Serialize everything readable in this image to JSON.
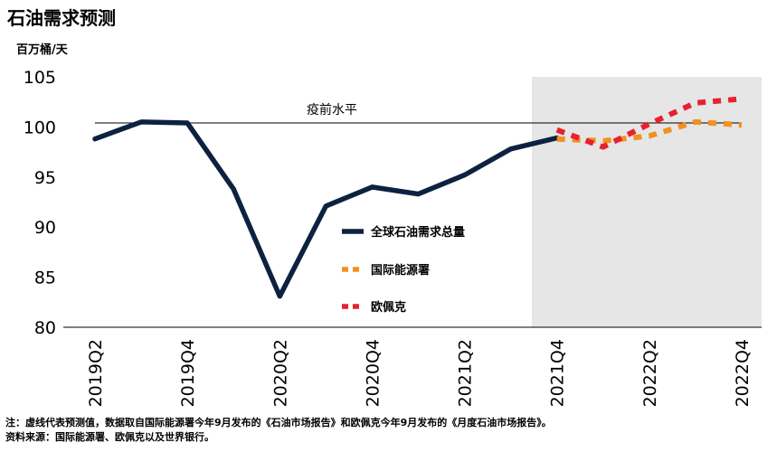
{
  "title": "石油需求预测",
  "unit_label": "百万桶/天",
  "footnotes": {
    "note": "注：虚线代表预测值，数据取自国际能源署今年9月发布的《石油市场报告》和欧佩克今年9月发布的《月度石油市场报告》。",
    "source": "资料来源：国际能源署、欧佩克以及世界银行。"
  },
  "chart_data": {
    "type": "line",
    "categories": [
      "2019Q2",
      "2019Q3",
      "2019Q4",
      "2020Q1",
      "2020Q2",
      "2020Q3",
      "2020Q4",
      "2021Q1",
      "2021Q2",
      "2021Q3",
      "2021Q4",
      "2022Q1",
      "2022Q2",
      "2022Q3",
      "2022Q4"
    ],
    "tick_labels": [
      "2019Q2",
      "2019Q4",
      "2020Q2",
      "2020Q4",
      "2021Q2",
      "2021Q4",
      "2022Q2",
      "2022Q4"
    ],
    "ylim": [
      80,
      105
    ],
    "yticks": [
      80,
      85,
      90,
      95,
      100,
      105
    ],
    "forecast_shade_from": "2021Q4",
    "reference_line": {
      "value": 100.4,
      "label": "疫前水平"
    },
    "series": [
      {
        "name": "全球石油需求总量",
        "color": "#0d2240",
        "style": "solid",
        "x": [
          "2019Q2",
          "2019Q3",
          "2019Q4",
          "2020Q1",
          "2020Q2",
          "2020Q3",
          "2020Q4",
          "2021Q1",
          "2021Q2",
          "2021Q3",
          "2021Q4"
        ],
        "values": [
          98.8,
          100.5,
          100.4,
          93.8,
          83.1,
          92.1,
          94.0,
          93.3,
          95.2,
          97.8,
          98.9
        ]
      },
      {
        "name": "国际能源署",
        "color": "#f39020",
        "style": "dashed",
        "x": [
          "2021Q4",
          "2022Q1",
          "2022Q2",
          "2022Q3",
          "2022Q4"
        ],
        "values": [
          98.8,
          98.6,
          99.1,
          100.5,
          100.2
        ]
      },
      {
        "name": "欧佩克",
        "color": "#e8202f",
        "style": "dashed",
        "x": [
          "2021Q4",
          "2022Q1",
          "2022Q2",
          "2022Q3",
          "2022Q4"
        ],
        "values": [
          99.7,
          98.0,
          100.3,
          102.4,
          102.8
        ]
      }
    ],
    "legend_position": "center"
  }
}
